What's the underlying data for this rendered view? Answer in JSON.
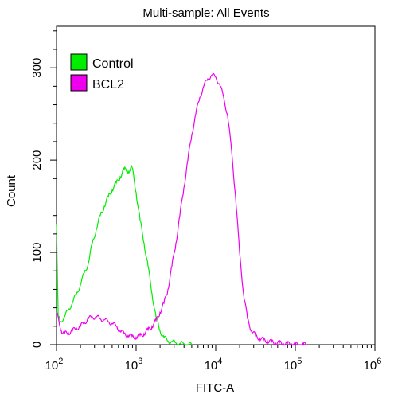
{
  "chart_data": {
    "type": "line",
    "title": "Multi-sample: All Events",
    "xlabel": "FITC-A",
    "ylabel": "Count",
    "x_scale": "log",
    "xlim": [
      100,
      1000000
    ],
    "ylim": [
      0,
      345
    ],
    "x_ticks": [
      100,
      1000,
      10000,
      100000,
      1000000
    ],
    "x_tick_labels": [
      {
        "base": "10",
        "exp": "2"
      },
      {
        "base": "10",
        "exp": "3"
      },
      {
        "base": "10",
        "exp": "4"
      },
      {
        "base": "10",
        "exp": "5"
      },
      {
        "base": "10",
        "exp": "6"
      }
    ],
    "y_ticks": [
      0,
      100,
      200,
      300
    ],
    "grid": false,
    "legend_position": "top-left",
    "series": [
      {
        "name": "Control",
        "color": "#00ee00",
        "x": [
          100,
          105,
          112,
          126,
          141,
          158,
          178,
          200,
          224,
          251,
          282,
          316,
          355,
          398,
          447,
          501,
          562,
          631,
          708,
          794,
          891,
          1000,
          1122,
          1259,
          1413,
          1585,
          1778,
          1995,
          2239,
          2512,
          2818,
          3162,
          3548,
          3981,
          4467,
          5012
        ],
        "y": [
          130,
          30,
          25,
          30,
          38,
          45,
          55,
          65,
          78,
          88,
          110,
          125,
          140,
          150,
          160,
          168,
          175,
          182,
          190,
          188,
          192,
          165,
          135,
          110,
          85,
          55,
          30,
          15,
          8,
          4,
          3,
          2,
          1,
          1,
          0,
          0
        ]
      },
      {
        "name": "BCL2",
        "color": "#ee00ee",
        "x": [
          100,
          115,
          126,
          141,
          158,
          178,
          200,
          224,
          251,
          282,
          316,
          355,
          398,
          447,
          501,
          562,
          631,
          708,
          794,
          891,
          1000,
          1122,
          1259,
          1413,
          1585,
          1778,
          1995,
          2239,
          2512,
          2818,
          3162,
          3548,
          3981,
          4467,
          5012,
          5623,
          6310,
          7079,
          7943,
          8913,
          10000,
          11220,
          12589,
          14125,
          15849,
          17783,
          19953,
          22387,
          25119,
          28184,
          31623,
          35481,
          39811,
          44668,
          50119,
          56234,
          63096,
          70795,
          79433,
          89125,
          100000,
          112202,
          125893,
          141254
        ],
        "y": [
          35,
          15,
          12,
          13,
          15,
          18,
          20,
          24,
          28,
          30,
          30,
          28,
          27,
          25,
          23,
          20,
          15,
          12,
          10,
          9,
          8,
          10,
          12,
          16,
          20,
          26,
          35,
          45,
          60,
          85,
          110,
          140,
          170,
          200,
          228,
          250,
          268,
          280,
          288,
          292,
          290,
          282,
          268,
          248,
          210,
          160,
          100,
          55,
          28,
          15,
          10,
          7,
          5,
          4,
          3,
          2,
          2,
          1,
          1,
          1,
          0,
          0,
          0,
          0
        ]
      }
    ]
  }
}
